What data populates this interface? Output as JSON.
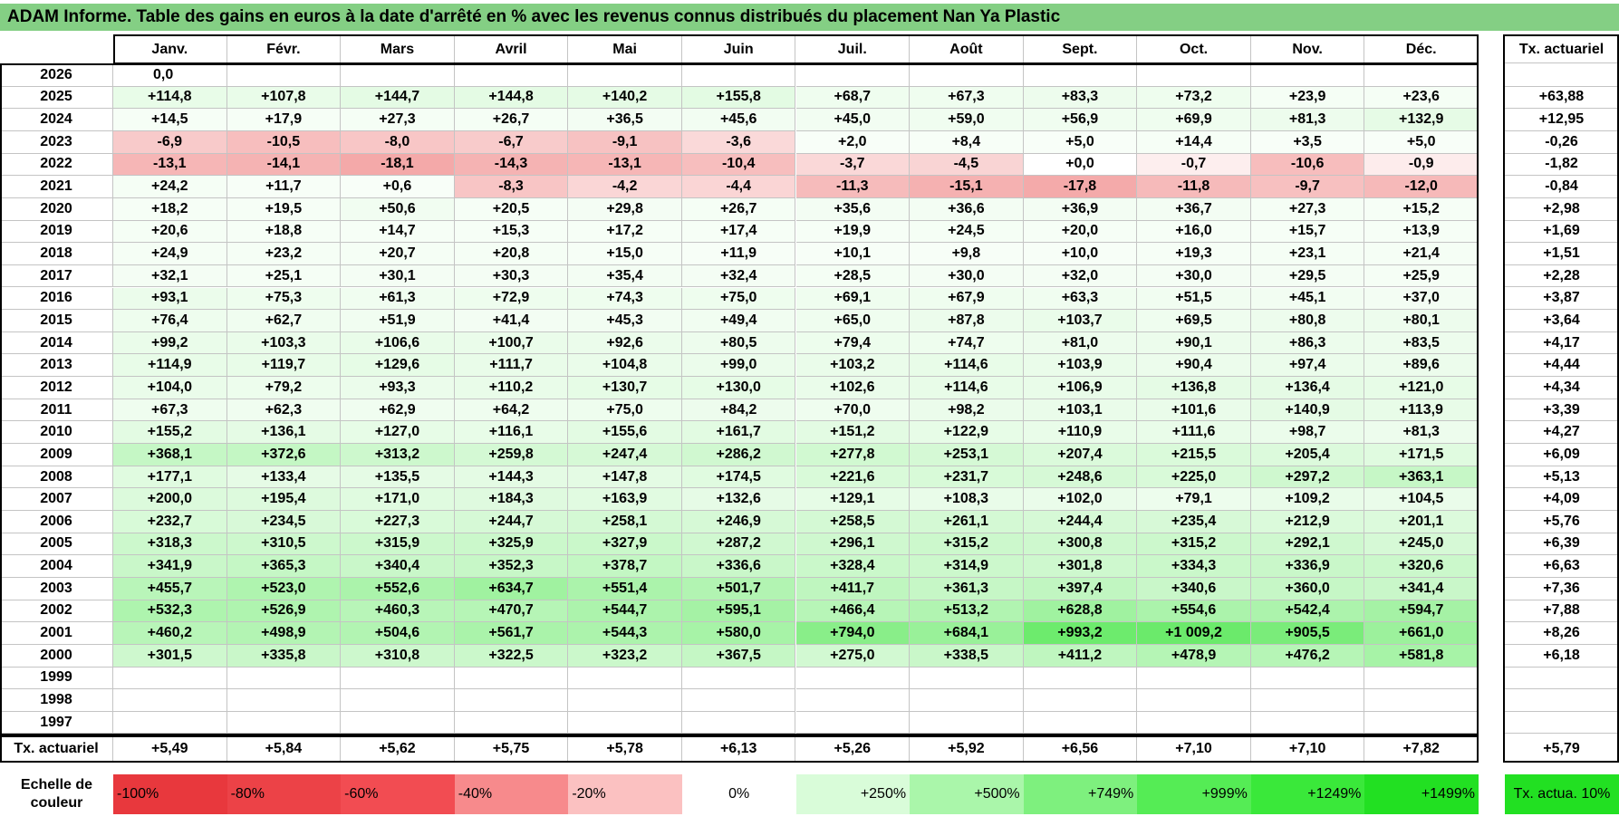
{
  "title": "ADAM Informe. Table des gains en euros à la date d'arrêté en % avec les revenus connus distribués du placement Nan Ya Plastic",
  "months": [
    "Janv.",
    "Févr.",
    "Mars",
    "Avril",
    "Mai",
    "Juin",
    "Juil.",
    "Août",
    "Sept.",
    "Oct.",
    "Nov.",
    "Déc."
  ],
  "rate_header": "Tx. actuariel",
  "rows": [
    {
      "year": "2026",
      "values": [
        "0,0"
      ]
    },
    {
      "year": "2025",
      "values": [
        "+114,8",
        "+107,8",
        "+144,7",
        "+144,8",
        "+140,2",
        "+155,8",
        "+68,7",
        "+67,3",
        "+83,3",
        "+73,2",
        "+23,9",
        "+23,6"
      ],
      "rate": "+63,88"
    },
    {
      "year": "2024",
      "values": [
        "+14,5",
        "+17,9",
        "+27,3",
        "+26,7",
        "+36,5",
        "+45,6",
        "+45,0",
        "+59,0",
        "+56,9",
        "+69,9",
        "+81,3",
        "+132,9"
      ],
      "rate": "+12,95"
    },
    {
      "year": "2023",
      "values": [
        "-6,9",
        "-10,5",
        "-8,0",
        "-6,7",
        "-9,1",
        "-3,6",
        "+2,0",
        "+8,4",
        "+5,0",
        "+14,4",
        "+3,5",
        "+5,0"
      ],
      "rate": "-0,26"
    },
    {
      "year": "2022",
      "values": [
        "-13,1",
        "-14,1",
        "-18,1",
        "-14,3",
        "-13,1",
        "-10,4",
        "-3,7",
        "-4,5",
        "+0,0",
        "-0,7",
        "-10,6",
        "-0,9"
      ],
      "rate": "-1,82"
    },
    {
      "year": "2021",
      "values": [
        "+24,2",
        "+11,7",
        "+0,6",
        "-8,3",
        "-4,2",
        "-4,4",
        "-11,3",
        "-15,1",
        "-17,8",
        "-11,8",
        "-9,7",
        "-12,0"
      ],
      "rate": "-0,84"
    },
    {
      "year": "2020",
      "values": [
        "+18,2",
        "+19,5",
        "+50,6",
        "+20,5",
        "+29,8",
        "+26,7",
        "+35,6",
        "+36,6",
        "+36,9",
        "+36,7",
        "+27,3",
        "+15,2"
      ],
      "rate": "+2,98"
    },
    {
      "year": "2019",
      "values": [
        "+20,6",
        "+18,8",
        "+14,7",
        "+15,3",
        "+17,2",
        "+17,4",
        "+19,9",
        "+24,5",
        "+20,0",
        "+16,0",
        "+15,7",
        "+13,9"
      ],
      "rate": "+1,69"
    },
    {
      "year": "2018",
      "values": [
        "+24,9",
        "+23,2",
        "+20,7",
        "+20,8",
        "+15,0",
        "+11,9",
        "+10,1",
        "+9,8",
        "+10,0",
        "+19,3",
        "+23,1",
        "+21,4"
      ],
      "rate": "+1,51"
    },
    {
      "year": "2017",
      "values": [
        "+32,1",
        "+25,1",
        "+30,1",
        "+30,3",
        "+35,4",
        "+32,4",
        "+28,5",
        "+30,0",
        "+32,0",
        "+30,0",
        "+29,5",
        "+25,9"
      ],
      "rate": "+2,28"
    },
    {
      "year": "2016",
      "values": [
        "+93,1",
        "+75,3",
        "+61,3",
        "+72,9",
        "+74,3",
        "+75,0",
        "+69,1",
        "+67,9",
        "+63,3",
        "+51,5",
        "+45,1",
        "+37,0"
      ],
      "rate": "+3,87"
    },
    {
      "year": "2015",
      "values": [
        "+76,4",
        "+62,7",
        "+51,9",
        "+41,4",
        "+45,3",
        "+49,4",
        "+65,0",
        "+87,8",
        "+103,7",
        "+69,5",
        "+80,8",
        "+80,1"
      ],
      "rate": "+3,64"
    },
    {
      "year": "2014",
      "values": [
        "+99,2",
        "+103,3",
        "+106,6",
        "+100,7",
        "+92,6",
        "+80,5",
        "+79,4",
        "+74,7",
        "+81,0",
        "+90,1",
        "+86,3",
        "+83,5"
      ],
      "rate": "+4,17"
    },
    {
      "year": "2013",
      "values": [
        "+114,9",
        "+119,7",
        "+129,6",
        "+111,7",
        "+104,8",
        "+99,0",
        "+103,2",
        "+114,6",
        "+103,9",
        "+90,4",
        "+97,4",
        "+89,6"
      ],
      "rate": "+4,44"
    },
    {
      "year": "2012",
      "values": [
        "+104,0",
        "+79,2",
        "+93,3",
        "+110,2",
        "+130,7",
        "+130,0",
        "+102,6",
        "+114,6",
        "+106,9",
        "+136,8",
        "+136,4",
        "+121,0"
      ],
      "rate": "+4,34"
    },
    {
      "year": "2011",
      "values": [
        "+67,3",
        "+62,3",
        "+62,9",
        "+64,2",
        "+75,0",
        "+84,2",
        "+70,0",
        "+98,2",
        "+103,1",
        "+101,6",
        "+140,9",
        "+113,9"
      ],
      "rate": "+3,39"
    },
    {
      "year": "2010",
      "values": [
        "+155,2",
        "+136,1",
        "+127,0",
        "+116,1",
        "+155,6",
        "+161,7",
        "+151,2",
        "+122,9",
        "+110,9",
        "+111,6",
        "+98,7",
        "+81,3"
      ],
      "rate": "+4,27"
    },
    {
      "year": "2009",
      "values": [
        "+368,1",
        "+372,6",
        "+313,2",
        "+259,8",
        "+247,4",
        "+286,2",
        "+277,8",
        "+253,1",
        "+207,4",
        "+215,5",
        "+205,4",
        "+171,5"
      ],
      "rate": "+6,09"
    },
    {
      "year": "2008",
      "values": [
        "+177,1",
        "+133,4",
        "+135,5",
        "+144,3",
        "+147,8",
        "+174,5",
        "+221,6",
        "+231,7",
        "+248,6",
        "+225,0",
        "+297,2",
        "+363,1"
      ],
      "rate": "+5,13"
    },
    {
      "year": "2007",
      "values": [
        "+200,0",
        "+195,4",
        "+171,0",
        "+184,3",
        "+163,9",
        "+132,6",
        "+129,1",
        "+108,3",
        "+102,0",
        "+79,1",
        "+109,2",
        "+104,5"
      ],
      "rate": "+4,09"
    },
    {
      "year": "2006",
      "values": [
        "+232,7",
        "+234,5",
        "+227,3",
        "+244,7",
        "+258,1",
        "+246,9",
        "+258,5",
        "+261,1",
        "+244,4",
        "+235,4",
        "+212,9",
        "+201,1"
      ],
      "rate": "+5,76"
    },
    {
      "year": "2005",
      "values": [
        "+318,3",
        "+310,5",
        "+315,9",
        "+325,9",
        "+327,9",
        "+287,2",
        "+296,1",
        "+315,2",
        "+300,8",
        "+315,2",
        "+292,1",
        "+245,0"
      ],
      "rate": "+6,39"
    },
    {
      "year": "2004",
      "values": [
        "+341,9",
        "+365,3",
        "+340,4",
        "+352,3",
        "+378,7",
        "+336,6",
        "+328,4",
        "+314,9",
        "+301,8",
        "+334,3",
        "+336,9",
        "+320,6"
      ],
      "rate": "+6,63"
    },
    {
      "year": "2003",
      "values": [
        "+455,7",
        "+523,0",
        "+552,6",
        "+634,7",
        "+551,4",
        "+501,7",
        "+411,7",
        "+361,3",
        "+397,4",
        "+340,6",
        "+360,0",
        "+341,4"
      ],
      "rate": "+7,36"
    },
    {
      "year": "2002",
      "values": [
        "+532,3",
        "+526,9",
        "+460,3",
        "+470,7",
        "+544,7",
        "+595,1",
        "+466,4",
        "+513,2",
        "+628,8",
        "+554,6",
        "+542,4",
        "+594,7"
      ],
      "rate": "+7,88"
    },
    {
      "year": "2001",
      "values": [
        "+460,2",
        "+498,9",
        "+504,6",
        "+561,7",
        "+544,3",
        "+580,0",
        "+794,0",
        "+684,1",
        "+993,2",
        "+1 009,2",
        "+905,5",
        "+661,0"
      ],
      "rate": "+8,26"
    },
    {
      "year": "2000",
      "values": [
        "+301,5",
        "+335,8",
        "+310,8",
        "+322,5",
        "+323,2",
        "+367,5",
        "+275,0",
        "+338,5",
        "+411,2",
        "+478,9",
        "+476,2",
        "+581,8"
      ],
      "rate": "+6,18"
    },
    {
      "year": "1999",
      "values": []
    },
    {
      "year": "1998",
      "values": []
    },
    {
      "year": "1997",
      "values": []
    }
  ],
  "footer": {
    "label": "Tx. actuariel",
    "values": [
      "+5,49",
      "+5,84",
      "+5,62",
      "+5,75",
      "+5,78",
      "+6,13",
      "+5,26",
      "+5,92",
      "+6,56",
      "+7,10",
      "+7,10",
      "+7,82"
    ],
    "rate": "+5,79"
  },
  "legend": {
    "label": "Echelle de couleur",
    "steps": [
      {
        "label": "-100%",
        "color": "#e8383d"
      },
      {
        "label": "-80%",
        "color": "#ec4247"
      },
      {
        "label": "-60%",
        "color": "#f24c52"
      },
      {
        "label": "-40%",
        "color": "#f78a8c"
      },
      {
        "label": "-20%",
        "color": "#fbc1c1"
      },
      {
        "label": "0%",
        "color": "#ffffff"
      },
      {
        "label": "+250%",
        "color": "#d9fcd9"
      },
      {
        "label": "+500%",
        "color": "#aaf6aa"
      },
      {
        "label": "+749%",
        "color": "#7ef07e"
      },
      {
        "label": "+999%",
        "color": "#55ec55"
      },
      {
        "label": "+1249%",
        "color": "#3ae83a"
      },
      {
        "label": "+1499%",
        "color": "#22e022"
      }
    ],
    "rate": {
      "label": "Tx. actua. 10%",
      "color": "#22e022"
    }
  }
}
